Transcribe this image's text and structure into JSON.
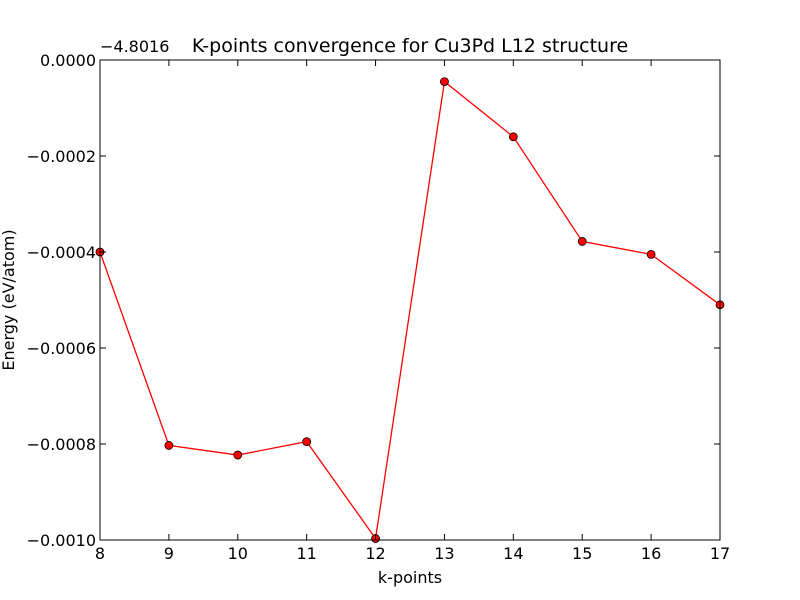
{
  "chart_data": {
    "type": "line",
    "title": "K-points convergence for Cu3Pd L12 structure",
    "xlabel": "k-points",
    "ylabel": "Energy (eV/atom)",
    "y_offset_label": "−4.8016",
    "y_offset": -4.8016,
    "xlim": [
      8,
      17
    ],
    "ylim": [
      -0.001,
      0.0
    ],
    "grid": false,
    "x_ticks": [
      8,
      9,
      10,
      11,
      12,
      13,
      14,
      15,
      16,
      17
    ],
    "x_tick_labels": [
      "8",
      "9",
      "10",
      "11",
      "12",
      "13",
      "14",
      "15",
      "16",
      "17"
    ],
    "y_ticks": [
      0.0,
      -0.0002,
      -0.0004,
      -0.0006,
      -0.0008,
      -0.001
    ],
    "y_tick_labels": [
      "0.0000",
      "−0.0002",
      "−0.0004",
      "−0.0006",
      "−0.0008",
      "−0.0010"
    ],
    "series": [
      {
        "color": "#ff0000",
        "marker_color": "#ff0000",
        "x": [
          8,
          9,
          10,
          11,
          12,
          13,
          14,
          15,
          16,
          17
        ],
        "y": [
          -0.0004,
          -0.000803,
          -0.000823,
          -0.000795,
          -0.000997,
          -4.5e-05,
          -0.00016,
          -0.000378,
          -0.000405,
          -0.00051
        ]
      }
    ]
  }
}
